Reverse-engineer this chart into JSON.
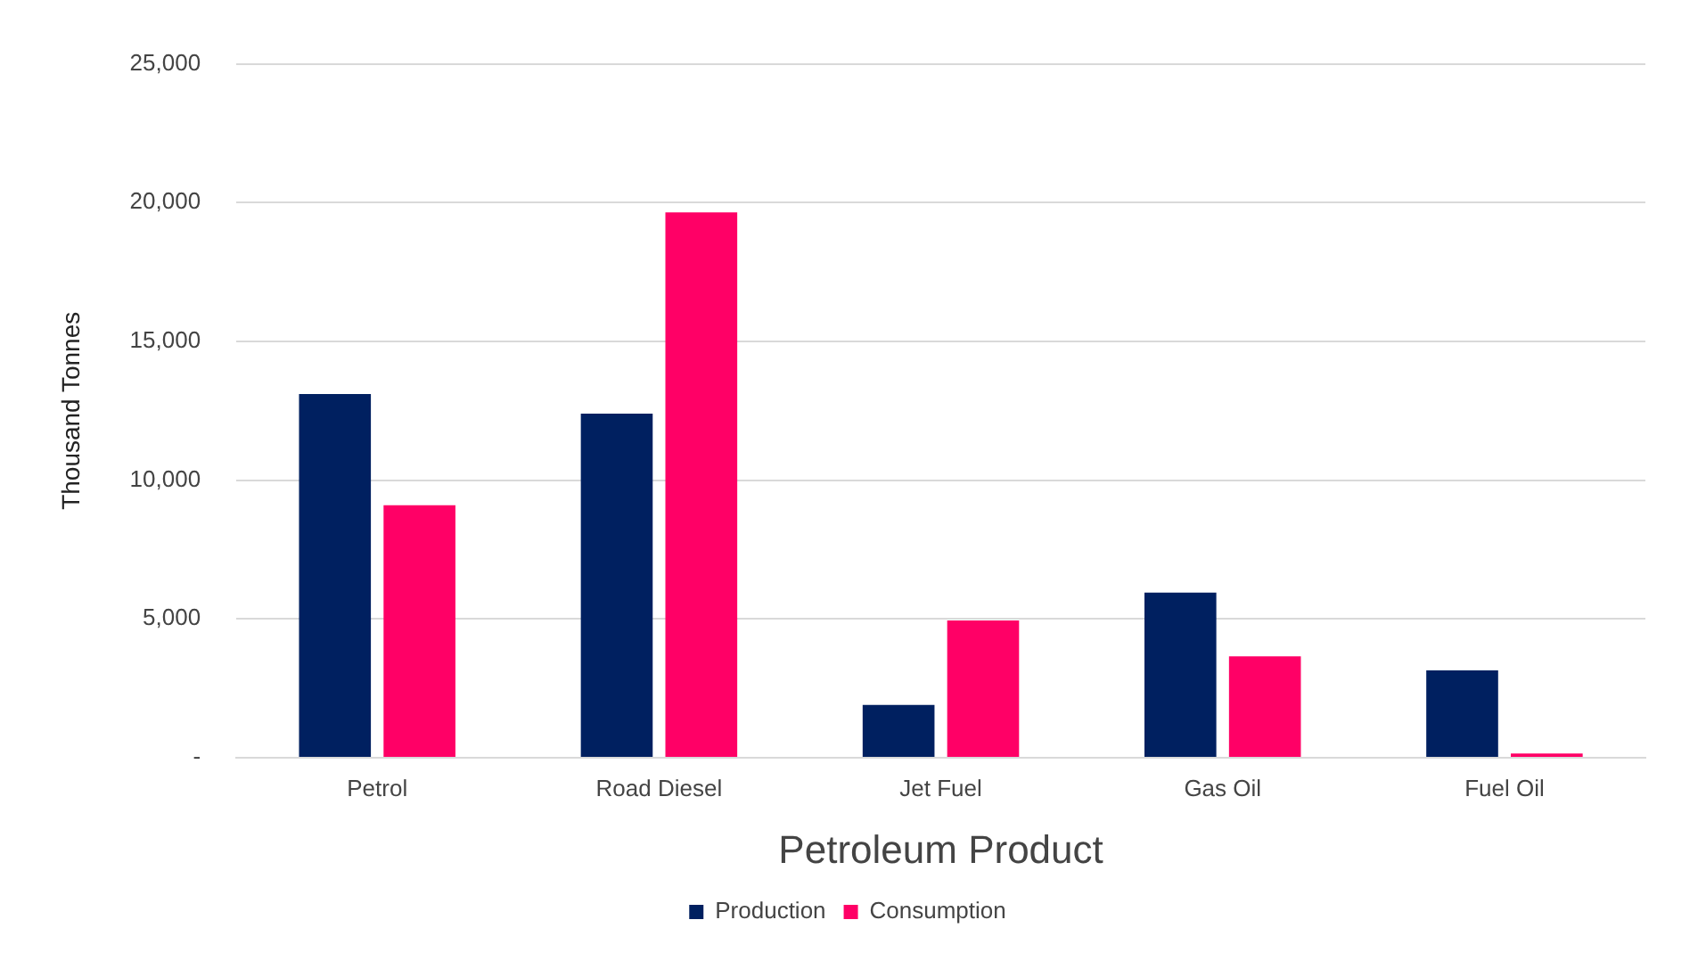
{
  "chart_data": {
    "type": "bar",
    "xlabel": "Petroleum Product",
    "ylabel": "Thousand Tonnes",
    "categories": [
      "Petrol",
      "Road Diesel",
      "Jet Fuel",
      "Gas Oil",
      "Fuel Oil"
    ],
    "series": [
      {
        "name": "Production",
        "color": "#002060",
        "values": [
          13100,
          12400,
          1900,
          5950,
          3150
        ]
      },
      {
        "name": "Consumption",
        "color": "#ff0066",
        "values": [
          9100,
          19650,
          4950,
          3650,
          150
        ]
      }
    ],
    "ylim": [
      0,
      25000
    ],
    "yticks": [
      {
        "value": 0,
        "label": "-"
      },
      {
        "value": 5000,
        "label": "5,000"
      },
      {
        "value": 10000,
        "label": "10,000"
      },
      {
        "value": 15000,
        "label": "15,000"
      },
      {
        "value": 20000,
        "label": "20,000"
      },
      {
        "value": 25000,
        "label": "25,000"
      }
    ],
    "grid": "y",
    "legend": "bottom"
  }
}
